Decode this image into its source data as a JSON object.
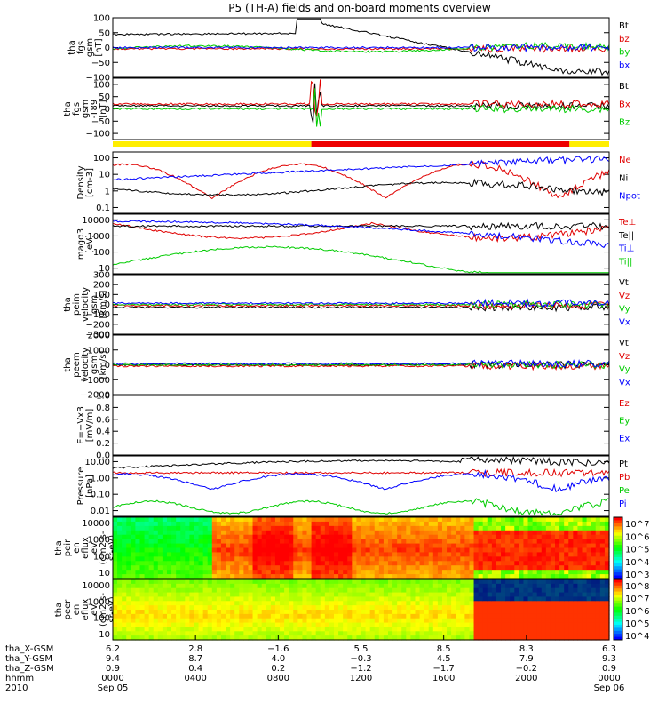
{
  "title": "P5 (TH-A) fields and on-board moments overview",
  "colors": {
    "black": "#000000",
    "red": "#e00000",
    "green": "#00cc00",
    "blue": "#0000ff",
    "yellow": "#ffee00",
    "bar_red": "#ee0000"
  },
  "status_bar": {
    "colors": [
      "yellow",
      "bar_red"
    ],
    "split_fraction": 0.4
  },
  "chart_data": [
    {
      "type": "line",
      "ylabel": [
        "tha",
        "fgs",
        "gsm",
        "[nT]"
      ],
      "ticks": [
        "100",
        "50",
        "0",
        "−50",
        "−100"
      ],
      "tick_values": [
        100,
        50,
        0,
        -50,
        -100
      ],
      "ylim": [
        -100,
        100
      ],
      "legend": [
        [
          "Bt",
          "black"
        ],
        [
          "bz",
          "red"
        ],
        [
          "by",
          "green"
        ],
        [
          "bx",
          "blue"
        ]
      ]
    },
    {
      "type": "line",
      "ylabel": [
        "tha",
        "fgs",
        "gsm",
        "-T89",
        "[nT]"
      ],
      "ticks": [
        "100",
        "50",
        "0",
        "−50",
        "−100"
      ],
      "tick_values": [
        100,
        50,
        0,
        -50,
        -100
      ],
      "ylim": [
        -125,
        125
      ],
      "legend": [
        [
          "Bt",
          "black"
        ],
        [
          "Bx",
          "red"
        ],
        [
          "Bz",
          "green"
        ]
      ]
    },
    {
      "type": "line",
      "scale": "log",
      "ylabel": [
        "Density",
        "[cm-3]"
      ],
      "ticks": [
        "100",
        "10",
        "1",
        "0.1"
      ],
      "tick_values": [
        100,
        10,
        1,
        0.1
      ],
      "legend": [
        [
          "Ne",
          "red"
        ],
        [
          "Ni",
          "black"
        ],
        [
          "Npot",
          "blue"
        ]
      ]
    },
    {
      "type": "line",
      "scale": "log",
      "ylabel": [
        "magα3",
        "[eV]"
      ],
      "ticks": [
        "10000",
        "1000",
        "100",
        "10"
      ],
      "tick_values": [
        10000,
        1000,
        100,
        10
      ],
      "legend": [
        [
          "Te⊥",
          "red"
        ],
        [
          "Te||",
          "black"
        ],
        [
          "Ti⊥",
          "blue"
        ],
        [
          "Ti||",
          "green"
        ]
      ]
    },
    {
      "type": "line",
      "ylabel": [
        "tha",
        "peim",
        "velocity",
        "gsm",
        "[km/s]"
      ],
      "ticks": [
        "300",
        "200",
        "100",
        "0",
        "−100",
        "−200",
        "−300"
      ],
      "tick_values": [
        300,
        200,
        100,
        0,
        -100,
        -200,
        -300
      ],
      "ylim": [
        -300,
        300
      ],
      "legend": [
        [
          "Vt",
          "black"
        ],
        [
          "Vz",
          "red"
        ],
        [
          "Vy",
          "green"
        ],
        [
          "Vx",
          "blue"
        ]
      ]
    },
    {
      "type": "line",
      "ylabel": [
        "tha",
        "peem",
        "velocity",
        "gsm",
        "[km/s]"
      ],
      "ticks": [
        "2000",
        "1000",
        "0",
        "−1000",
        "−2000"
      ],
      "tick_values": [
        2000,
        1000,
        0,
        -1000,
        -2000
      ],
      "ylim": [
        -2000,
        2000
      ],
      "legend": [
        [
          "Vt",
          "black"
        ],
        [
          "Vz",
          "red"
        ],
        [
          "Vy",
          "green"
        ],
        [
          "Vx",
          "blue"
        ]
      ]
    },
    {
      "type": "line",
      "ylabel": [
        "E=−VxB",
        "[mV/m]"
      ],
      "ticks": [
        "1.0",
        "0.8",
        "0.6",
        "0.4",
        "0.2",
        "0.0"
      ],
      "tick_values": [
        1.0,
        0.8,
        0.6,
        0.4,
        0.2,
        0.0
      ],
      "ylim": [
        0,
        1
      ],
      "legend": [
        [
          "Ez",
          "red"
        ],
        [
          "Ey",
          "green"
        ],
        [
          "Ex",
          "blue"
        ]
      ]
    },
    {
      "type": "line",
      "scale": "log",
      "ylabel": [
        "Pressure",
        "[nPa]"
      ],
      "ticks": [
        "10.00",
        "1.00",
        "0.10",
        "0.01"
      ],
      "tick_values": [
        10,
        1,
        0.1,
        0.01
      ],
      "legend": [
        [
          "Pt",
          "black"
        ],
        [
          "Pb",
          "red"
        ],
        [
          "Pe",
          "green"
        ],
        [
          "Pi",
          "blue"
        ]
      ]
    },
    {
      "type": "heatmap",
      "scale": "log",
      "ylabel": [
        "tha",
        "peir",
        "en",
        "eflux",
        "eV",
        "(cm2-s-",
        "sr-eV)"
      ],
      "ticks": [
        "10000",
        "1000",
        "100",
        "10"
      ],
      "tick_values": [
        10000,
        1000,
        100,
        10
      ],
      "colorbar": {
        "labels": [
          "10^7",
          "10^6",
          "10^5",
          "10^4",
          "10^3"
        ]
      }
    },
    {
      "type": "heatmap",
      "scale": "log",
      "ylabel": [
        "tha",
        "peer",
        "en",
        "eflux",
        "eV",
        "(cm2-s-",
        "sr-eV)"
      ],
      "ticks": [
        "10000",
        "1000",
        "100",
        "10"
      ],
      "tick_values": [
        10000,
        1000,
        100,
        10
      ],
      "colorbar": {
        "labels": [
          "10^8",
          "10^7",
          "10^6",
          "10^5",
          "10^4"
        ]
      }
    }
  ],
  "xaxis": {
    "rows": [
      {
        "label": "tha_X-GSM",
        "values": [
          "6.2",
          "2.8",
          "−1.6",
          "5.5",
          "8.5",
          "8.3",
          "6.3"
        ]
      },
      {
        "label": "tha_Y-GSM",
        "values": [
          "9.4",
          "8.7",
          "4.0",
          "−0.3",
          "4.5",
          "7.9",
          "9.3"
        ]
      },
      {
        "label": "tha_Z-GSM",
        "values": [
          "0.9",
          "0.4",
          "0.2",
          "−1.2",
          "−1.7",
          "−0.2",
          "0.9"
        ]
      },
      {
        "label": "hhmm",
        "values": [
          "0000",
          "0400",
          "0800",
          "1200",
          "1600",
          "2000",
          "0000"
        ]
      },
      {
        "label": "2010",
        "values": [
          "Sep 05",
          "",
          "",
          "",
          "",
          "",
          "Sep 06"
        ]
      }
    ]
  }
}
